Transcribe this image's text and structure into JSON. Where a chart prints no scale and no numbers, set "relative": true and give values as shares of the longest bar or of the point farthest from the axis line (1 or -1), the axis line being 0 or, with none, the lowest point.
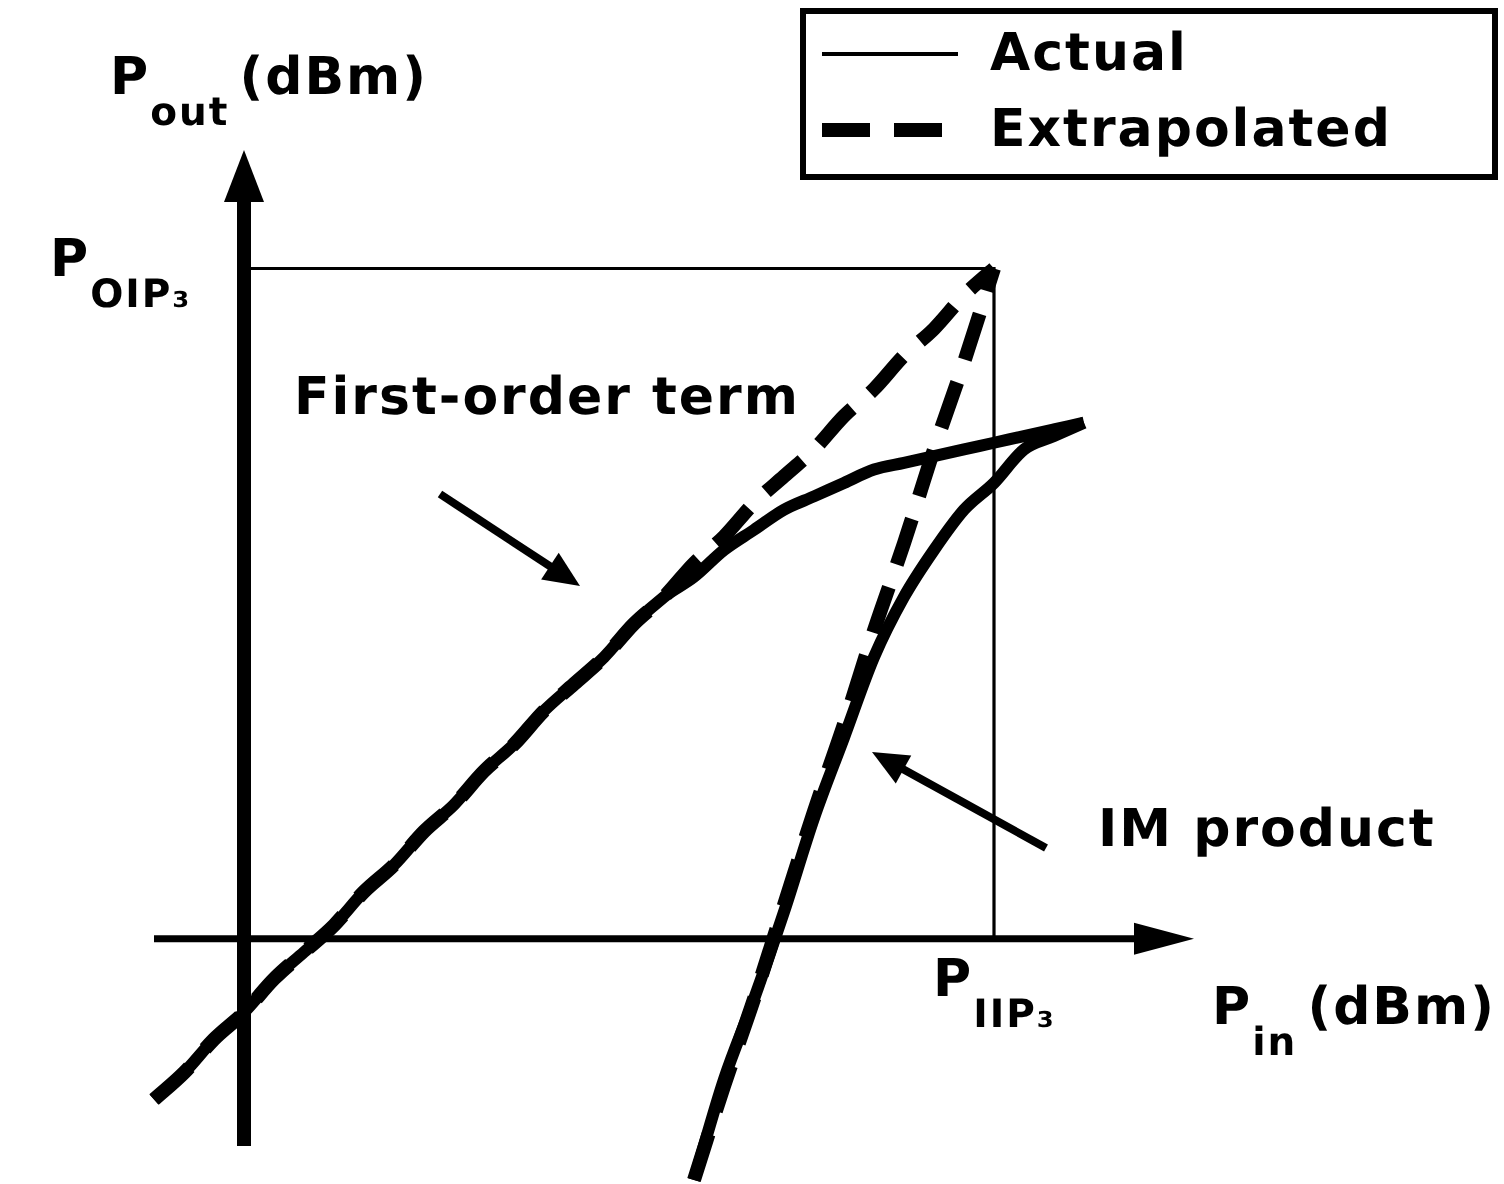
{
  "chart_data": {
    "type": "line",
    "relative": true,
    "xlabel": "P$_{in}$ (dBm)",
    "ylabel": "P$_{out}$ (dBm)",
    "categories": [
      null,
      null,
      null,
      null,
      null,
      null,
      null,
      null,
      null,
      null,
      null,
      null,
      null,
      null,
      null,
      null,
      null,
      null,
      null,
      null,
      null,
      null,
      null,
      null,
      null,
      null,
      null,
      null,
      null,
      null,
      null,
      null,
      null,
      null,
      null
    ],
    "series": [
      {
        "name": "Actual",
        "color": "#000000",
        "line_style": "solid",
        "values": [
          -0.24,
          -0.2,
          -0.15,
          -0.11,
          -0.06,
          -0.02,
          0.02,
          0.07,
          0.11,
          0.16,
          0.2,
          0.25,
          0.29,
          0.34,
          0.38,
          0.42,
          0.47,
          0.51,
          0.54,
          0.58,
          0.61,
          0.64,
          0.66,
          0.68,
          0.7,
          0.71,
          0.72,
          0.73,
          0.74,
          0.75,
          0.76,
          0.77,
          null,
          null,
          null
        ]
      },
      {
        "name": "Extrapolated",
        "color": "#000000",
        "line_style": "dashed",
        "values": [
          -0.24,
          -0.2,
          -0.15,
          -0.11,
          -0.06,
          -0.02,
          0.02,
          0.07,
          0.11,
          0.16,
          0.2,
          0.25,
          0.29,
          0.34,
          0.38,
          0.42,
          0.47,
          0.51,
          0.56,
          0.6,
          0.65,
          0.69,
          0.73,
          0.78,
          0.82,
          0.87,
          0.91,
          0.96,
          1,
          null,
          null,
          null,
          null,
          null,
          null
        ]
      },
      {
        "color": "#000000",
        "line_style": "solid",
        "values": [
          null,
          null,
          null,
          null,
          null,
          null,
          null,
          null,
          null,
          null,
          null,
          null,
          null,
          null,
          null,
          null,
          null,
          null,
          -0.36,
          -0.21,
          -0.09,
          0.04,
          0.18,
          0.3,
          0.42,
          0.51,
          0.58,
          0.64,
          0.68,
          0.73,
          0.75,
          0.77,
          null,
          null,
          null
        ]
      },
      {
        "color": "#000000",
        "line_style": "dashed",
        "values": [
          null,
          null,
          null,
          null,
          null,
          null,
          null,
          null,
          null,
          null,
          null,
          null,
          null,
          null,
          null,
          null,
          null,
          null,
          -0.36,
          -0.22,
          -0.09,
          0.05,
          0.19,
          0.32,
          0.46,
          0.59,
          0.73,
          0.86,
          1,
          null,
          null,
          null,
          null,
          null,
          null
        ]
      }
    ],
    "ref_lines": [
      {
        "axis": "y",
        "value": 1,
        "label": "P$_{OIP₃}$"
      }
    ],
    "annotations": [
      "First-order term",
      "IM product",
      "P$_{IIP₃}$"
    ],
    "legend": "top right",
    "marker": "none"
  }
}
